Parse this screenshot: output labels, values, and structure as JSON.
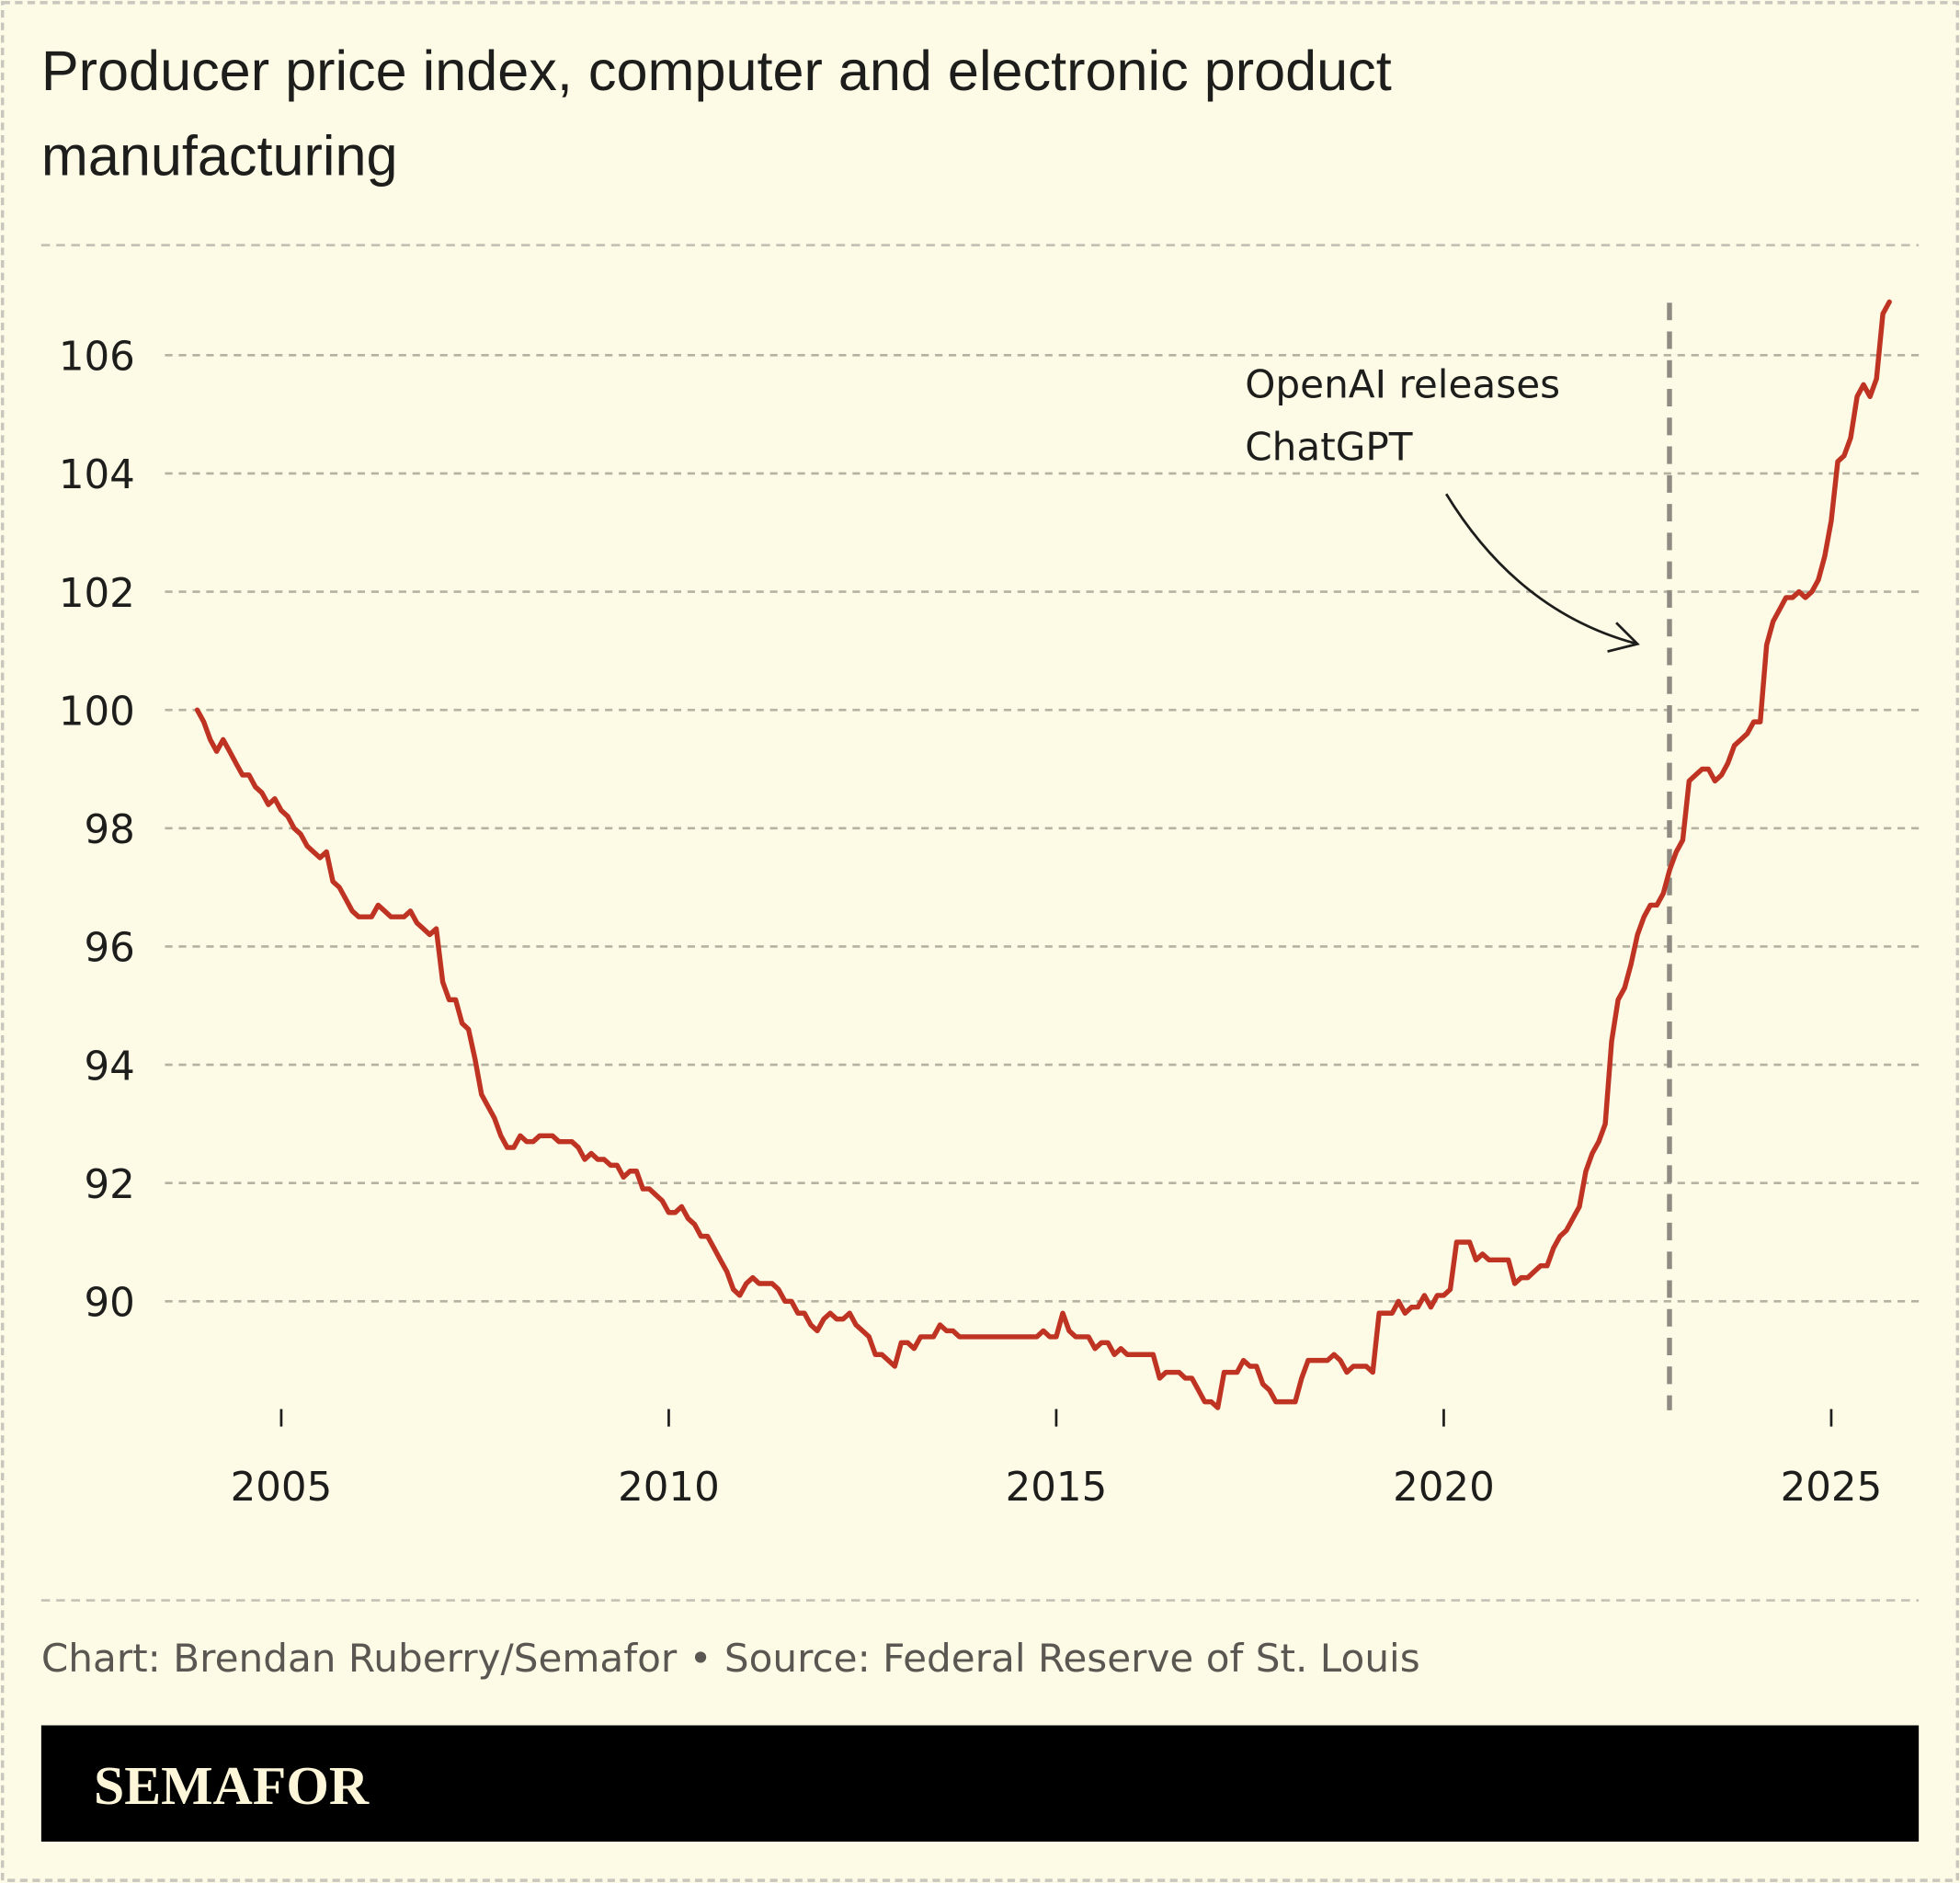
{
  "title_line1": "Producer price index, computer and electronic product",
  "title_line2": "manufacturing",
  "credit": "Chart: Brendan Ruberry/Semafor • Source: Federal Reserve of St. Louis",
  "logo": "SEMAFOR",
  "colors": {
    "background": "#fdfae6",
    "line": "#bf3323",
    "grid": "#b5b2a2",
    "event_line": "#8f8a82",
    "footer_bar": "#000000"
  },
  "chart_data": {
    "type": "line",
    "title": "Producer price index, computer and electronic product manufacturing",
    "xlabel": "",
    "ylabel": "",
    "grid": true,
    "y_ticks": [
      "90",
      "92",
      "94",
      "96",
      "98",
      "100",
      "102",
      "104",
      "106"
    ],
    "x_ticks": [
      "2005",
      "2010",
      "2015",
      "2020",
      "2025"
    ],
    "ylim": [
      87.8,
      107.3
    ],
    "xlim": [
      "2003-01",
      "2026-03"
    ],
    "series": [
      {
        "frequency": "monthly",
        "start": "2003-12",
        "values": [
          100.0,
          99.8,
          99.5,
          99.3,
          99.5,
          99.3,
          99.1,
          98.9,
          98.9,
          98.7,
          98.6,
          98.4,
          98.5,
          98.3,
          98.2,
          98.0,
          97.9,
          97.7,
          97.6,
          97.5,
          97.6,
          97.1,
          97.0,
          96.8,
          96.6,
          96.5,
          96.5,
          96.5,
          96.7,
          96.6,
          96.5,
          96.5,
          96.5,
          96.6,
          96.4,
          96.3,
          96.2,
          96.3,
          95.4,
          95.1,
          95.1,
          94.7,
          94.6,
          94.1,
          93.5,
          93.3,
          93.1,
          92.8,
          92.6,
          92.6,
          92.8,
          92.7,
          92.7,
          92.8,
          92.8,
          92.8,
          92.7,
          92.7,
          92.7,
          92.6,
          92.4,
          92.5,
          92.4,
          92.4,
          92.3,
          92.3,
          92.1,
          92.2,
          92.2,
          91.9,
          91.9,
          91.8,
          91.7,
          91.5,
          91.5,
          91.6,
          91.4,
          91.3,
          91.1,
          91.1,
          90.9,
          90.7,
          90.5,
          90.2,
          90.1,
          90.3,
          90.4,
          90.3,
          90.3,
          90.3,
          90.2,
          90.0,
          90.0,
          89.8,
          89.8,
          89.6,
          89.5,
          89.7,
          89.8,
          89.7,
          89.7,
          89.8,
          89.6,
          89.5,
          89.4,
          89.1,
          89.1,
          89.0,
          88.9,
          89.3,
          89.3,
          89.2,
          89.4,
          89.4,
          89.4,
          89.6,
          89.5,
          89.5,
          89.4,
          89.4,
          89.4,
          89.4,
          89.4,
          89.4,
          89.4,
          89.4,
          89.4,
          89.4,
          89.4,
          89.4,
          89.4,
          89.5,
          89.4,
          89.4,
          89.8,
          89.5,
          89.4,
          89.4,
          89.4,
          89.2,
          89.3,
          89.3,
          89.1,
          89.2,
          89.1,
          89.1,
          89.1,
          89.1,
          89.1,
          88.7,
          88.8,
          88.8,
          88.8,
          88.7,
          88.7,
          88.5,
          88.3,
          88.3,
          88.2,
          88.8,
          88.8,
          88.8,
          89.0,
          88.9,
          88.9,
          88.6,
          88.5,
          88.3,
          88.3,
          88.3,
          88.3,
          88.7,
          89.0,
          89.0,
          89.0,
          89.0,
          89.1,
          89.0,
          88.8,
          88.9,
          88.9,
          88.9,
          88.8,
          89.8,
          89.8,
          89.8,
          90.0,
          89.8,
          89.9,
          89.9,
          90.1,
          89.9,
          90.1,
          90.1,
          90.2,
          91.0,
          91.0,
          91.0,
          90.7,
          90.8,
          90.7,
          90.7,
          90.7,
          90.7,
          90.3,
          90.4,
          90.4,
          90.5,
          90.6,
          90.6,
          90.9,
          91.1,
          91.2,
          91.4,
          91.6,
          92.2,
          92.5,
          92.7,
          93.0,
          94.4,
          95.1,
          95.3,
          95.7,
          96.2,
          96.5,
          96.7,
          96.7,
          96.9,
          97.3,
          97.6,
          97.8,
          98.8,
          98.9,
          99.0,
          99.0,
          98.8,
          98.9,
          99.1,
          99.4,
          99.5,
          99.6,
          99.8,
          99.8,
          101.1,
          101.5,
          101.7,
          101.9,
          101.9,
          102.0,
          101.9,
          102.0,
          102.2,
          102.6,
          103.2,
          104.2,
          104.3,
          104.6,
          105.3,
          105.5,
          105.3,
          105.6,
          106.7,
          106.9
        ]
      }
    ],
    "annotations": [
      {
        "text_line1": "OpenAI releases",
        "text_line2": "ChatGPT",
        "x": "2022-11-30",
        "style": "vertical dashed line with curved arrow"
      }
    ]
  }
}
